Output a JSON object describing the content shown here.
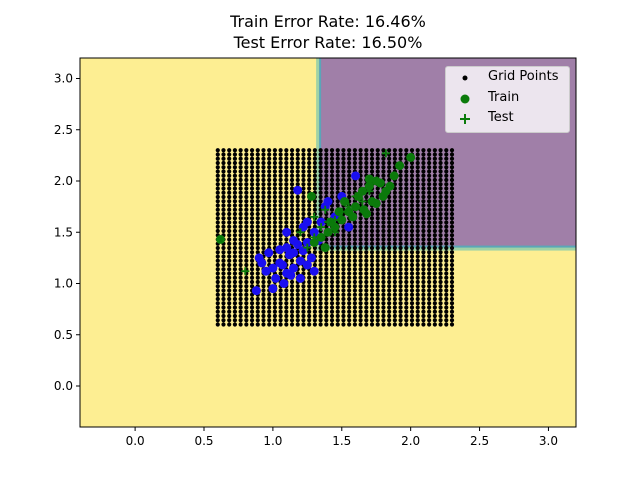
{
  "title": {
    "line1": "Train Error Rate: 16.46%",
    "line2": "Test Error Rate: 16.50%"
  },
  "legend": {
    "grid": "Grid Points",
    "train": "Train",
    "test": "Test"
  },
  "colors": {
    "background_region": "#fdee92",
    "purple_region": "#a07fa8",
    "grid_points": "#000000",
    "train_class_0": "#1a0ff0",
    "train_class_1": "#0b7a0b",
    "test_marker": "#0b7a0b"
  },
  "chart_data": {
    "type": "scatter",
    "title": "Train Error Rate: 16.46%\nTest Error Rate: 16.50%",
    "xlabel": "",
    "ylabel": "",
    "xlim": [
      -0.4,
      3.2
    ],
    "ylim": [
      -0.4,
      3.2
    ],
    "xticks": [
      0.0,
      0.5,
      1.0,
      1.5,
      2.0,
      2.5,
      3.0
    ],
    "yticks": [
      0.0,
      0.5,
      1.0,
      1.5,
      2.0,
      2.5,
      3.0
    ],
    "xtick_labels": [
      "0.0",
      "0.5",
      "1.0",
      "1.5",
      "2.0",
      "2.5",
      "3.0"
    ],
    "ytick_labels": [
      "0.0",
      "0.5",
      "1.0",
      "1.5",
      "2.0",
      "2.5",
      "3.0"
    ],
    "legend_position": "top-right",
    "decision_regions": [
      {
        "label": "class 0 region",
        "color": "#fdee92",
        "extent": "everywhere else"
      },
      {
        "label": "class 1 region",
        "color": "#a07fa8",
        "x_range": [
          1.35,
          3.2
        ],
        "y_range": [
          1.37,
          3.2
        ]
      }
    ],
    "grid_points": {
      "name": "Grid Points",
      "x_range": [
        0.6,
        2.3
      ],
      "y_range": [
        0.6,
        2.3
      ],
      "count_per_axis": 42
    },
    "series": [
      {
        "name": "Train",
        "class": 0,
        "color": "#1a0ff0",
        "points": [
          [
            0.88,
            0.93
          ],
          [
            1.0,
            0.95
          ],
          [
            1.08,
            1.0
          ],
          [
            1.02,
            1.05
          ],
          [
            1.1,
            1.1
          ],
          [
            1.15,
            1.15
          ],
          [
            1.05,
            1.2
          ],
          [
            1.2,
            1.22
          ],
          [
            1.12,
            1.28
          ],
          [
            0.97,
            1.3
          ],
          [
            1.1,
            1.35
          ],
          [
            1.18,
            1.38
          ],
          [
            1.25,
            1.4
          ],
          [
            1.3,
            1.5
          ],
          [
            1.22,
            1.55
          ],
          [
            1.35,
            1.6
          ],
          [
            1.15,
            1.42
          ],
          [
            1.07,
            1.18
          ],
          [
            0.95,
            1.12
          ],
          [
            0.9,
            1.25
          ],
          [
            1.2,
            1.05
          ],
          [
            1.28,
            1.25
          ],
          [
            1.3,
            1.12
          ],
          [
            1.15,
            1.3
          ],
          [
            1.18,
            1.91
          ],
          [
            1.38,
            1.75
          ],
          [
            1.5,
            1.85
          ],
          [
            1.45,
            1.65
          ],
          [
            1.55,
            1.55
          ],
          [
            1.6,
            2.05
          ],
          [
            1.4,
            1.8
          ],
          [
            1.25,
            1.6
          ],
          [
            1.1,
            1.5
          ],
          [
            1.0,
            1.15
          ],
          [
            1.22,
            1.32
          ],
          [
            1.05,
            1.33
          ],
          [
            1.13,
            1.08
          ],
          [
            1.25,
            1.18
          ],
          [
            0.92,
            1.2
          ],
          [
            1.33,
            1.42
          ]
        ]
      },
      {
        "name": "Train",
        "class": 1,
        "color": "#0b7a0b",
        "points": [
          [
            0.62,
            1.43
          ],
          [
            2.0,
            2.23
          ],
          [
            1.92,
            2.15
          ],
          [
            1.75,
            2.0
          ],
          [
            1.7,
            1.95
          ],
          [
            1.65,
            1.9
          ],
          [
            1.8,
            1.85
          ],
          [
            1.72,
            1.8
          ],
          [
            1.6,
            1.75
          ],
          [
            1.55,
            1.7
          ],
          [
            1.68,
            1.68
          ],
          [
            1.75,
            1.78
          ],
          [
            1.82,
            1.9
          ],
          [
            1.5,
            1.62
          ],
          [
            1.45,
            1.55
          ],
          [
            1.4,
            1.5
          ],
          [
            1.35,
            1.45
          ],
          [
            1.3,
            1.4
          ],
          [
            1.62,
            1.85
          ],
          [
            1.78,
            1.98
          ],
          [
            1.7,
            2.02
          ],
          [
            1.85,
            1.95
          ],
          [
            1.58,
            1.65
          ],
          [
            1.52,
            1.8
          ],
          [
            1.66,
            1.72
          ],
          [
            1.28,
            1.85
          ],
          [
            1.48,
            1.7
          ],
          [
            1.88,
            2.05
          ],
          [
            1.42,
            1.6
          ],
          [
            1.38,
            1.35
          ]
        ]
      },
      {
        "name": "Test",
        "color": "#0b7a0b",
        "points": [
          [
            0.8,
            1.12
          ],
          [
            1.82,
            2.27
          ],
          [
            1.55,
            1.75
          ],
          [
            1.45,
            1.62
          ],
          [
            1.35,
            1.55
          ],
          [
            1.3,
            1.45
          ],
          [
            1.25,
            1.35
          ],
          [
            1.6,
            1.85
          ],
          [
            1.7,
            1.9
          ],
          [
            1.5,
            1.7
          ],
          [
            1.4,
            1.6
          ],
          [
            1.2,
            1.5
          ],
          [
            1.38,
            1.72
          ],
          [
            1.65,
            1.8
          ],
          [
            1.45,
            1.5
          ],
          [
            1.3,
            1.65
          ]
        ]
      }
    ]
  }
}
